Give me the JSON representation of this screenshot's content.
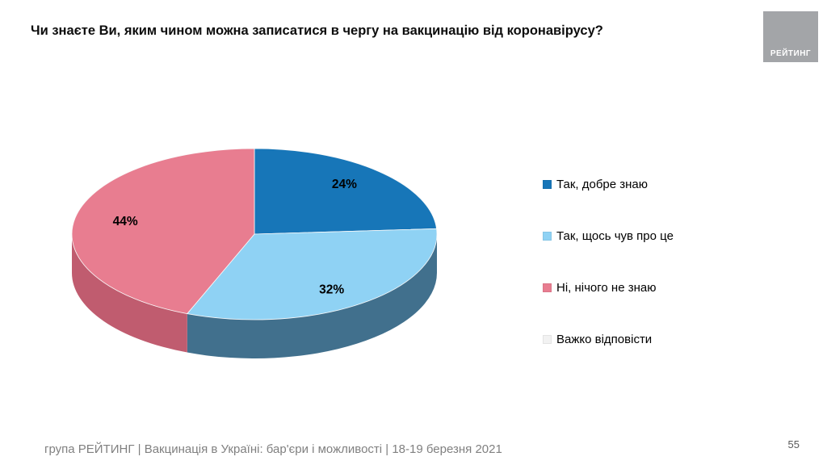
{
  "header": {
    "title": "Чи знаєте Ви, яким чином можна записатися в чергу на вакцинацію від коронавірусу?",
    "logo_text": "РЕЙТИНГ"
  },
  "footer": {
    "source": "група РЕЙТИНГ | Вакцинація в Україні: бар'єри і можливості | 18-19 березня 2021",
    "page_number": "55"
  },
  "chart_data": {
    "type": "pie",
    "style": "3d",
    "title": "Чи знаєте Ви, яким чином можна записатися в чергу на вакцинацію від коронавірусу?",
    "labels": [
      "Так, добре знаю",
      "Так, щось чув про це",
      "Ні, нічого не знаю",
      "Важко відповісти"
    ],
    "values": [
      24,
      32,
      44,
      0
    ],
    "data_labels": [
      "24%",
      "32%",
      "44%",
      ""
    ],
    "colors": [
      "#1776b8",
      "#8fd2f4",
      "#e87d90",
      "#f2f2f2"
    ],
    "side_colors": [
      "#11577f",
      "#41708d",
      "#c05c6f",
      "#d9d9d9"
    ],
    "start_angle_deg": -90,
    "direction": "clockwise",
    "legend_position": "right",
    "label_color": "#000000"
  }
}
